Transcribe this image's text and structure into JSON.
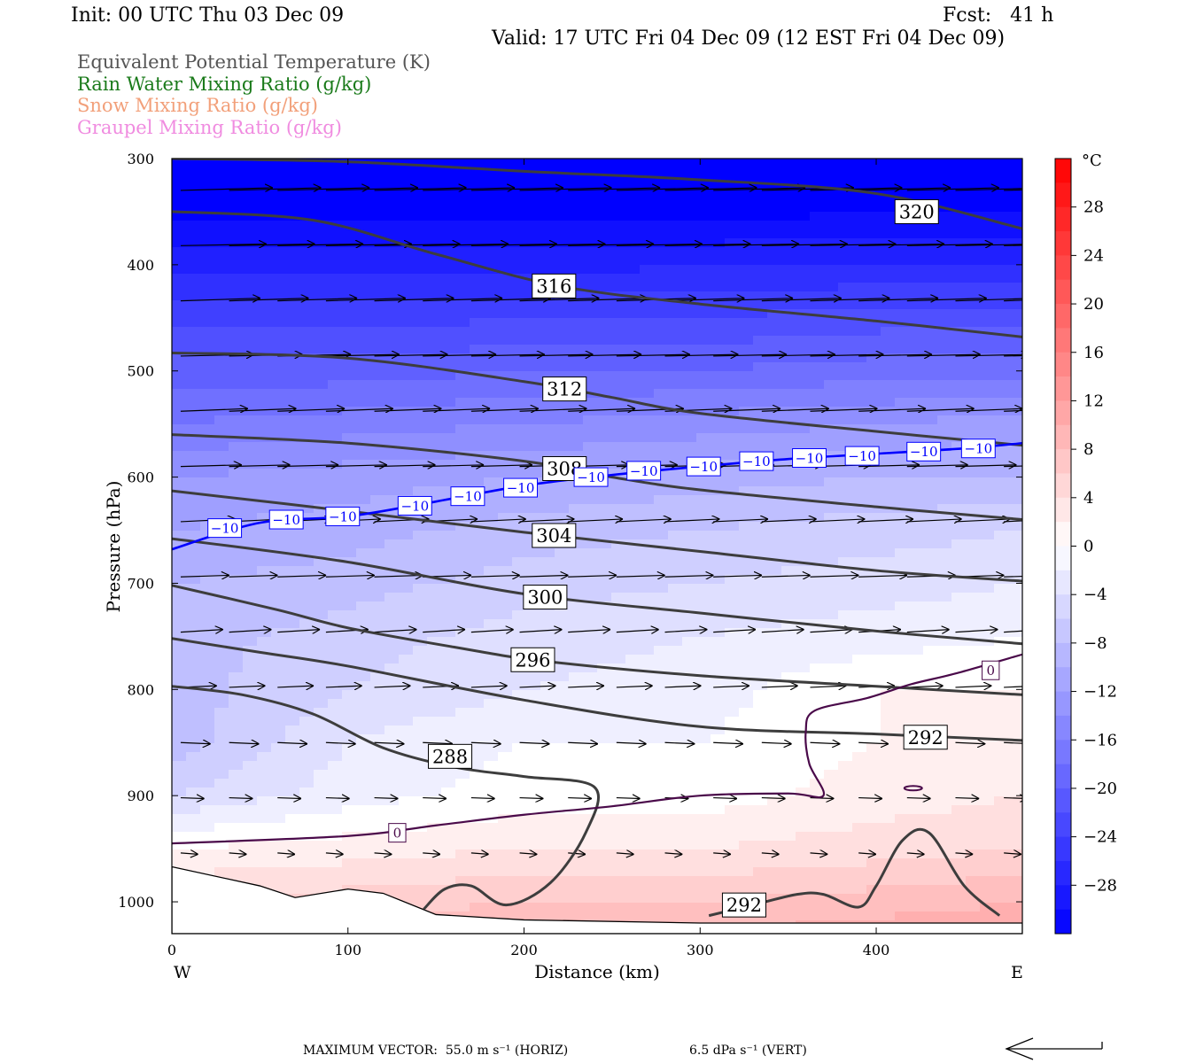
{
  "header": {
    "init": "Init: 00 UTC Thu 03 Dec 09",
    "fcst": "Fcst:   41 h",
    "valid": "Valid: 17 UTC Fri 04 Dec 09 (12 EST Fri 04 Dec 09)"
  },
  "legend": [
    {
      "label": "Equivalent Potential Temperature (K)",
      "color": "#555555"
    },
    {
      "label": "Rain Water Mixing Ratio (g/kg)",
      "color": "#1a7a1a"
    },
    {
      "label": "Snow Mixing Ratio (g/kg)",
      "color": "#f2a07a"
    },
    {
      "label": "Graupel Mixing Ratio (g/kg)",
      "color": "#f08ce0"
    }
  ],
  "chart_data": {
    "type": "heatmap",
    "subtype": "vertical cross-section",
    "xlabel": "Distance (km)",
    "ylabel": "Pressure (hPa)",
    "xlim": [
      0,
      483
    ],
    "ylim": [
      300,
      1030
    ],
    "y_reversed": true,
    "xticks": [
      0,
      100,
      200,
      300,
      400
    ],
    "yticks": [
      300,
      400,
      500,
      600,
      700,
      800,
      900,
      1000
    ],
    "west_label": "W",
    "east_label": "E",
    "colorbar": {
      "unit": "°C",
      "ticks": [
        28,
        24,
        20,
        16,
        12,
        8,
        4,
        0,
        -4,
        -8,
        -12,
        -16,
        -20,
        -24,
        -28
      ],
      "tick_labels": [
        "28",
        "24",
        "20",
        "16",
        "12",
        "8",
        "4",
        "0",
        "−4",
        "−8",
        "−12",
        "−16",
        "−20",
        "−24",
        "−28"
      ],
      "min": -32,
      "max": 32,
      "cold_color": "#0000ff",
      "neutral_color": "#ffffff",
      "warm_color": "#ff0000"
    },
    "temperature_field": {
      "x": [
        0,
        100,
        200,
        300,
        400,
        483
      ],
      "p": [
        300,
        350,
        400,
        450,
        500,
        550,
        600,
        650,
        700,
        750,
        800,
        850,
        900,
        950,
        1000,
        1030
      ],
      "values": [
        [
          -34,
          -34,
          -34,
          -34,
          -34,
          -34
        ],
        [
          -32,
          -32,
          -32,
          -32,
          -31,
          -31
        ],
        [
          -28,
          -28,
          -28,
          -27,
          -27,
          -27
        ],
        [
          -24,
          -24,
          -23,
          -23,
          -22,
          -22
        ],
        [
          -20,
          -20,
          -19,
          -19,
          -18,
          -18
        ],
        [
          -17,
          -16,
          -15,
          -14,
          -13,
          -12
        ],
        [
          -13,
          -12,
          -11,
          -10,
          -9,
          -9
        ],
        [
          -11,
          -10,
          -8,
          -7,
          -6,
          -5
        ],
        [
          -9,
          -8,
          -6,
          -5,
          -4,
          -3
        ],
        [
          -8,
          -6,
          -4,
          -3,
          -2,
          -1
        ],
        [
          -8,
          -5,
          -3,
          -2,
          1,
          1
        ],
        [
          -8,
          -3,
          -1,
          -1,
          1,
          2
        ],
        [
          -5,
          -2,
          0,
          0,
          2,
          3
        ],
        [
          1,
          2,
          3,
          3,
          4,
          5
        ],
        [
          5,
          6,
          7,
          7,
          8,
          9
        ],
        [
          7,
          8,
          9,
          9,
          10,
          11
        ]
      ]
    },
    "theta_e_contours": [
      {
        "value": 320,
        "label": "320",
        "label_at": [
          423,
          350
        ],
        "points": [
          [
            0,
            300
          ],
          [
            100,
            303
          ],
          [
            200,
            312
          ],
          [
            300,
            320
          ],
          [
            400,
            333
          ],
          [
            483,
            366
          ]
        ]
      },
      {
        "value": 316,
        "label": "316",
        "label_at": [
          217,
          420
        ],
        "points": [
          [
            0,
            350
          ],
          [
            80,
            358
          ],
          [
            150,
            390
          ],
          [
            220,
            420
          ],
          [
            300,
            437
          ],
          [
            400,
            453
          ],
          [
            483,
            468
          ]
        ]
      },
      {
        "value": 312,
        "label": "312",
        "label_at": [
          223,
          517
        ],
        "points": [
          [
            0,
            483
          ],
          [
            100,
            488
          ],
          [
            200,
            510
          ],
          [
            250,
            525
          ],
          [
            300,
            540
          ],
          [
            400,
            557
          ],
          [
            483,
            570
          ]
        ]
      },
      {
        "value": 308,
        "label": "308",
        "label_at": [
          223,
          592
        ],
        "points": [
          [
            0,
            560
          ],
          [
            100,
            568
          ],
          [
            200,
            585
          ],
          [
            250,
            600
          ],
          [
            300,
            612
          ],
          [
            400,
            628
          ],
          [
            483,
            640
          ]
        ]
      },
      {
        "value": 304,
        "label": "304",
        "label_at": [
          217,
          655
        ],
        "points": [
          [
            0,
            613
          ],
          [
            100,
            632
          ],
          [
            200,
            652
          ],
          [
            300,
            670
          ],
          [
            400,
            688
          ],
          [
            483,
            698
          ]
        ]
      },
      {
        "value": 300,
        "label": "300",
        "label_at": [
          212,
          713
        ],
        "points": [
          [
            0,
            658
          ],
          [
            100,
            680
          ],
          [
            200,
            710
          ],
          [
            300,
            728
          ],
          [
            400,
            745
          ],
          [
            483,
            757
          ]
        ]
      },
      {
        "value": 296,
        "label": "296",
        "label_at": [
          205,
          772
        ],
        "points": [
          [
            0,
            702
          ],
          [
            60,
            725
          ],
          [
            100,
            742
          ],
          [
            160,
            760
          ],
          [
            210,
            773
          ],
          [
            300,
            787
          ],
          [
            400,
            797
          ],
          [
            483,
            805
          ]
        ]
      },
      {
        "value": 292,
        "label": "292",
        "label_at": [
          428,
          845
        ],
        "points": [
          [
            0,
            752
          ],
          [
            50,
            765
          ],
          [
            100,
            778
          ],
          [
            200,
            810
          ],
          [
            300,
            835
          ],
          [
            400,
            842
          ],
          [
            483,
            848
          ]
        ]
      },
      {
        "value": 288,
        "label": "288",
        "label_at": [
          158,
          863
        ],
        "points": [
          [
            0,
            797
          ],
          [
            40,
            805
          ],
          [
            80,
            823
          ],
          [
            120,
            855
          ],
          [
            160,
            873
          ],
          [
            200,
            882
          ],
          [
            240,
            892
          ],
          [
            235,
            935
          ],
          [
            215,
            982
          ],
          [
            190,
            1003
          ],
          [
            170,
            985
          ],
          [
            155,
            988
          ],
          [
            143,
            1007
          ]
        ]
      },
      {
        "value": 292,
        "label": "292",
        "label_at": [
          325,
          1003
        ],
        "points": [
          [
            305,
            1013
          ],
          [
            330,
            1003
          ],
          [
            355,
            993
          ],
          [
            370,
            993
          ],
          [
            390,
            1005
          ],
          [
            400,
            985
          ],
          [
            415,
            942
          ],
          [
            430,
            935
          ],
          [
            450,
            985
          ],
          [
            470,
            1013
          ]
        ]
      }
    ],
    "isotherm_contours": [
      {
        "value": -10,
        "label": "−10",
        "color": "#0000ff",
        "label_positions": [
          [
            30,
            648
          ],
          [
            65,
            640
          ],
          [
            97,
            637
          ],
          [
            138,
            627
          ],
          [
            168,
            618
          ],
          [
            198,
            610
          ],
          [
            238,
            600
          ],
          [
            268,
            594
          ],
          [
            302,
            590
          ],
          [
            332,
            585
          ],
          [
            362,
            582
          ],
          [
            392,
            580
          ],
          [
            427,
            576
          ],
          [
            458,
            573
          ]
        ],
        "points": [
          [
            0,
            668
          ],
          [
            50,
            643
          ],
          [
            100,
            637
          ],
          [
            150,
            623
          ],
          [
            200,
            608
          ],
          [
            250,
            598
          ],
          [
            300,
            590
          ],
          [
            350,
            583
          ],
          [
            400,
            578
          ],
          [
            450,
            573
          ],
          [
            483,
            568
          ]
        ]
      },
      {
        "value": 0,
        "label": "0",
        "color": "#4a0a4a",
        "label_positions": [
          [
            128,
            935
          ],
          [
            465,
            782
          ]
        ],
        "points": [
          [
            0,
            945
          ],
          [
            100,
            938
          ],
          [
            150,
            928
          ],
          [
            200,
            918
          ],
          [
            250,
            910
          ],
          [
            300,
            900
          ],
          [
            350,
            898
          ],
          [
            370,
            900
          ],
          [
            362,
            870
          ],
          [
            360,
            840
          ],
          [
            365,
            820
          ],
          [
            395,
            808
          ],
          [
            420,
            795
          ],
          [
            445,
            785
          ],
          [
            483,
            767
          ]
        ]
      }
    ],
    "ground_line": {
      "points": [
        [
          0,
          967
        ],
        [
          50,
          985
        ],
        [
          70,
          996
        ],
        [
          100,
          988
        ],
        [
          120,
          992
        ],
        [
          150,
          1012
        ],
        [
          200,
          1017
        ],
        [
          300,
          1020
        ],
        [
          400,
          1020
        ],
        [
          483,
          1020
        ]
      ]
    },
    "wind_vectors": {
      "max_vector_text": "MAXIMUM VECTOR:  55.0 m s⁻¹ (HORIZ)",
      "max_vector_vert_text": "6.5 dPa s⁻¹ (VERT)"
    }
  }
}
